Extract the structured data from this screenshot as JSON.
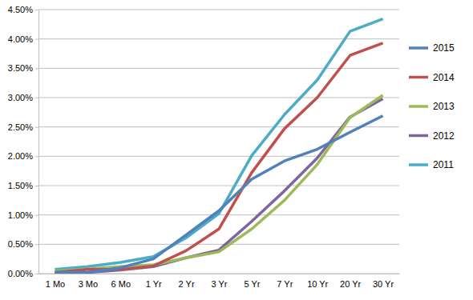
{
  "chart_data": {
    "type": "line",
    "categories": [
      "1 Mo",
      "3 Mo",
      "6 Mo",
      "1 Yr",
      "2 Yr",
      "3 Yr",
      "5 Yr",
      "7 Yr",
      "10 Yr",
      "20 Yr",
      "30 Yr"
    ],
    "series": [
      {
        "name": "2015",
        "color": "#4f81bd",
        "values": [
          0.02,
          0.02,
          0.1,
          0.25,
          0.66,
          1.07,
          1.61,
          1.92,
          2.12,
          2.41,
          2.69
        ]
      },
      {
        "name": "2014",
        "color": "#c0504d",
        "values": [
          0.02,
          0.07,
          0.07,
          0.13,
          0.39,
          0.76,
          1.72,
          2.47,
          3.0,
          3.72,
          3.93
        ]
      },
      {
        "name": "2013",
        "color": "#9bbb59",
        "values": [
          0.04,
          0.08,
          0.12,
          0.15,
          0.27,
          0.37,
          0.76,
          1.25,
          1.86,
          2.66,
          3.04
        ]
      },
      {
        "name": "2012",
        "color": "#8064a2",
        "values": [
          0.01,
          0.02,
          0.06,
          0.12,
          0.27,
          0.4,
          0.89,
          1.41,
          1.97,
          2.67,
          2.98
        ]
      },
      {
        "name": "2011",
        "color": "#4bacc6",
        "values": [
          0.07,
          0.12,
          0.19,
          0.29,
          0.61,
          1.02,
          2.01,
          2.71,
          3.3,
          4.13,
          4.34
        ]
      }
    ],
    "ylim": [
      0,
      4.5
    ],
    "yticks": [
      {
        "value": 0,
        "label": "0.00%"
      },
      {
        "value": 0.5,
        "label": "0.50%"
      },
      {
        "value": 1,
        "label": "1.00%"
      },
      {
        "value": 1.5,
        "label": "1.50%"
      },
      {
        "value": 2,
        "label": "2.00%"
      },
      {
        "value": 2.5,
        "label": "2.50%"
      },
      {
        "value": 3,
        "label": "3.00%"
      },
      {
        "value": 3.5,
        "label": "3.50%"
      },
      {
        "value": 4,
        "label": "4.00%"
      },
      {
        "value": 4.5,
        "label": "4.50%"
      }
    ],
    "grid": true,
    "legend": "right"
  }
}
